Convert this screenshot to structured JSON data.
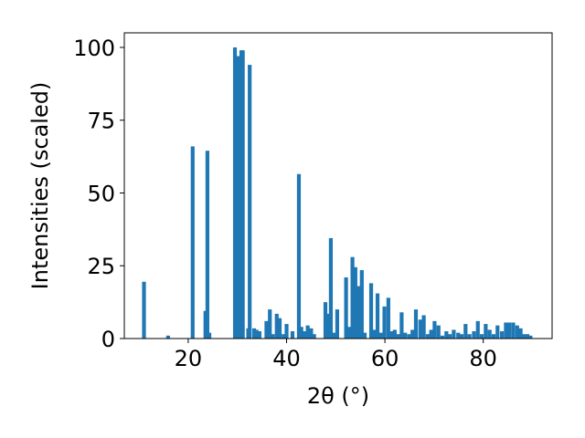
{
  "chart_data": {
    "type": "bar",
    "xlabel": "2θ (°)",
    "ylabel": "Intensities (scaled)",
    "xlim": [
      7,
      94
    ],
    "ylim": [
      0,
      105
    ],
    "x_ticks": [
      20,
      40,
      60,
      80
    ],
    "y_ticks": [
      0,
      25,
      50,
      75,
      100
    ],
    "bar_color": "#1f77b4",
    "grid": false,
    "x": [
      11.0,
      15.9,
      20.9,
      23.5,
      23.9,
      24.3,
      29.5,
      30.1,
      30.8,
      31.1,
      32.2,
      32.5,
      33.4,
      33.9,
      34.5,
      35.9,
      36.6,
      37.2,
      38.0,
      38.6,
      39.4,
      40.0,
      41.2,
      42.5,
      43.0,
      43.6,
      44.3,
      45.0,
      45.6,
      47.9,
      48.4,
      49.0,
      49.6,
      50.3,
      52.1,
      52.8,
      53.4,
      54.0,
      54.6,
      55.3,
      55.9,
      57.2,
      57.8,
      58.5,
      59.2,
      59.9,
      60.7,
      61.4,
      62.0,
      62.7,
      63.4,
      64.1,
      64.9,
      65.6,
      66.3,
      67.2,
      67.9,
      68.7,
      69.4,
      70.1,
      70.9,
      71.7,
      72.5,
      73.2,
      74.0,
      74.9,
      75.6,
      76.4,
      77.2,
      78.1,
      78.9,
      79.7,
      80.5,
      81.3,
      82.1,
      82.9,
      83.8,
      84.6,
      85.3,
      86.1,
      86.9,
      87.6,
      88.3,
      89.0,
      89.6
    ],
    "values": [
      19.5,
      1.0,
      66.0,
      9.5,
      64.5,
      2.0,
      100.0,
      97.0,
      99.0,
      99.0,
      3.5,
      94.0,
      3.5,
      3.0,
      2.5,
      6.0,
      10.0,
      1.5,
      8.5,
      7.0,
      1.5,
      5.0,
      2.5,
      56.5,
      4.0,
      2.5,
      4.5,
      3.5,
      1.5,
      12.5,
      8.5,
      34.5,
      2.0,
      10.0,
      21.0,
      4.0,
      28.0,
      24.5,
      18.0,
      23.5,
      2.0,
      19.0,
      3.0,
      15.5,
      2.0,
      11.0,
      14.0,
      2.5,
      3.0,
      1.5,
      9.0,
      2.0,
      1.5,
      3.0,
      10.0,
      6.5,
      8.0,
      1.5,
      3.0,
      6.0,
      4.5,
      1.0,
      2.5,
      1.5,
      3.0,
      2.0,
      1.5,
      5.0,
      1.5,
      2.5,
      6.0,
      1.5,
      5.0,
      3.0,
      1.5,
      4.5,
      2.5,
      5.5,
      5.5,
      5.5,
      4.5,
      3.5,
      1.5,
      1.5,
      1.0
    ]
  }
}
